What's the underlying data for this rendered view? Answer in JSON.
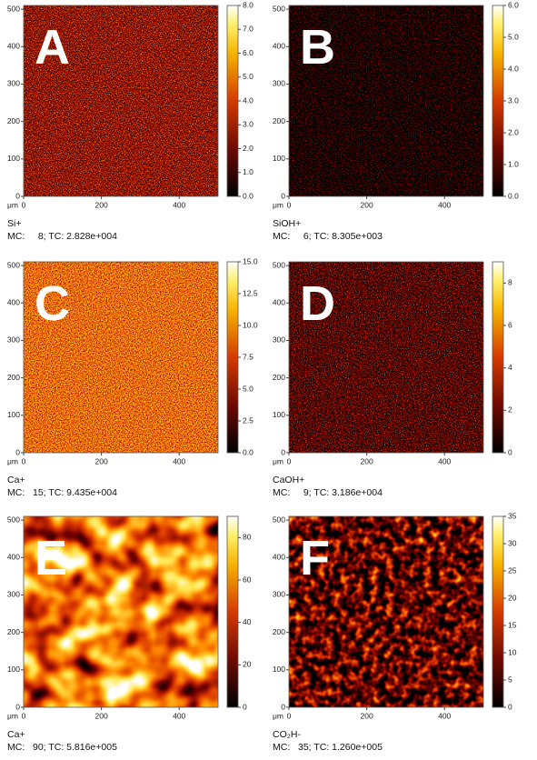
{
  "panels": [
    {
      "letter": "A",
      "ion": "Si+",
      "stats": "MC:     8; TC: 2.828e+004",
      "xunit": "μm",
      "xlim": [
        0,
        500
      ],
      "xticks": [
        0,
        200,
        400
      ],
      "ylim": [
        0,
        510
      ],
      "yticks": [
        0,
        100,
        200,
        300,
        400,
        500
      ],
      "clim": [
        0,
        8
      ],
      "cticks": [
        {
          "value": 0,
          "label": "0.0"
        },
        {
          "value": 1,
          "label": "1.0"
        },
        {
          "value": 2,
          "label": "2.0"
        },
        {
          "value": 3,
          "label": "3.0"
        },
        {
          "value": 4,
          "label": "4.0"
        },
        {
          "value": 5,
          "label": "5.0"
        },
        {
          "value": 6,
          "label": "6.0"
        },
        {
          "value": 7,
          "label": "7.0"
        },
        {
          "value": 8,
          "label": "8.0"
        }
      ]
    },
    {
      "letter": "B",
      "ion": "SiOH+",
      "stats": "MC:     6; TC: 8.305e+003",
      "xunit": "μm",
      "xlim": [
        0,
        500
      ],
      "xticks": [
        0,
        200,
        400
      ],
      "ylim": [
        0,
        510
      ],
      "yticks": [
        0,
        100,
        200,
        300,
        400,
        500
      ],
      "clim": [
        0,
        6
      ],
      "cticks": [
        {
          "value": 0,
          "label": "0.0"
        },
        {
          "value": 1,
          "label": "1.0"
        },
        {
          "value": 2,
          "label": "2.0"
        },
        {
          "value": 3,
          "label": "3.0"
        },
        {
          "value": 4,
          "label": "4.0"
        },
        {
          "value": 5,
          "label": "5.0"
        },
        {
          "value": 6,
          "label": "6.0"
        }
      ]
    },
    {
      "letter": "C",
      "ion": "Ca+",
      "stats": "MC:   15; TC: 9.435e+004",
      "xunit": "μm",
      "xlim": [
        0,
        500
      ],
      "xticks": [
        0,
        200,
        400
      ],
      "ylim": [
        0,
        510
      ],
      "yticks": [
        0,
        100,
        200,
        300,
        400,
        500
      ],
      "clim": [
        0,
        15
      ],
      "cticks": [
        {
          "value": 0,
          "label": "0.0"
        },
        {
          "value": 2.5,
          "label": "2.5"
        },
        {
          "value": 5,
          "label": "5.0"
        },
        {
          "value": 7.5,
          "label": "7.5"
        },
        {
          "value": 10,
          "label": "10.0"
        },
        {
          "value": 12.5,
          "label": "12.5"
        },
        {
          "value": 15,
          "label": "15.0"
        }
      ]
    },
    {
      "letter": "D",
      "ion": "CaOH+",
      "stats": "MC:     9; TC: 3.186e+004",
      "xunit": "μm",
      "xlim": [
        0,
        500
      ],
      "xticks": [
        0,
        200,
        400
      ],
      "ylim": [
        0,
        510
      ],
      "yticks": [
        0,
        100,
        200,
        300,
        400,
        500
      ],
      "clim": [
        0,
        9
      ],
      "cticks": [
        0,
        2,
        4,
        6,
        8
      ]
    },
    {
      "letter": "E",
      "ion": "Ca+",
      "stats": "MC:   90; TC: 5.816e+005",
      "xunit": "μm",
      "xlim": [
        0,
        500
      ],
      "xticks": [
        0,
        200,
        400
      ],
      "ylim": [
        0,
        510
      ],
      "yticks": [
        0,
        100,
        200,
        300,
        400,
        500
      ],
      "clim": [
        0,
        90
      ],
      "cticks": [
        0,
        20,
        40,
        60,
        80
      ]
    },
    {
      "letter": "F",
      "ion": "CO₂H-",
      "stats": "MC:   35; TC: 1.260e+005",
      "xunit": "μm",
      "xlim": [
        0,
        500
      ],
      "xticks": [
        0,
        200,
        400
      ],
      "ylim": [
        0,
        510
      ],
      "yticks": [
        0,
        100,
        200,
        300,
        400,
        500
      ],
      "clim": [
        0,
        35
      ],
      "cticks": [
        0,
        5,
        10,
        15,
        20,
        25,
        30,
        35
      ]
    }
  ]
}
